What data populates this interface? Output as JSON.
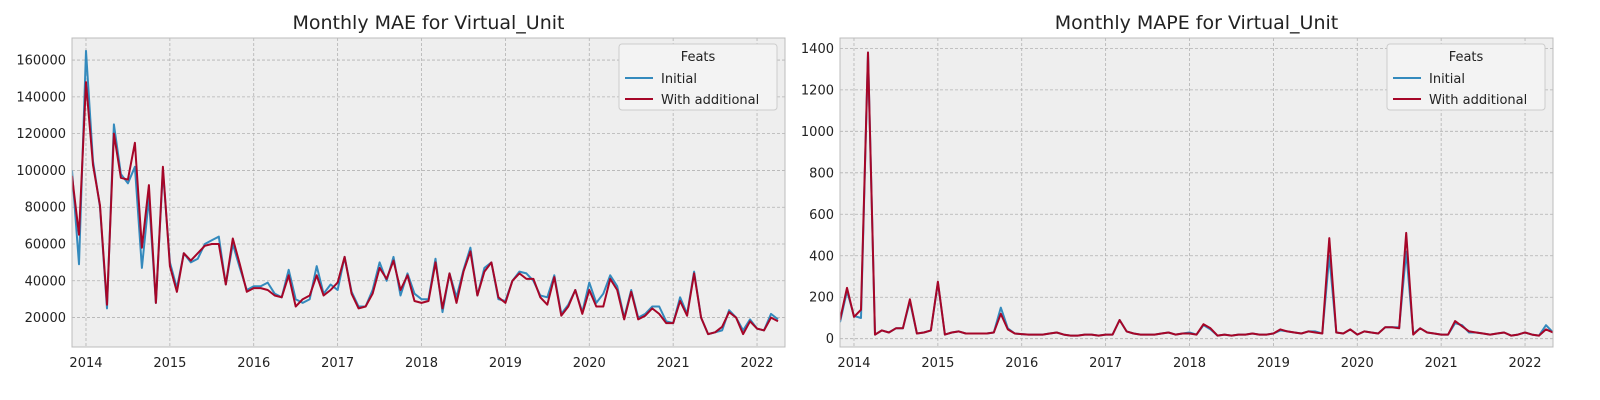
{
  "colors": {
    "background": "#ffffff",
    "plot_bg": "#eeeeee",
    "grid": "#b2b2b2",
    "initial": "#348abd",
    "with_additional": "#a60628"
  },
  "chart_data": [
    {
      "type": "line",
      "title": "Monthly MAE for Virtual_Unit",
      "xlabel": "",
      "ylabel": "",
      "x_start": "2013-11",
      "xlim": [
        "2013-11",
        "2022-05"
      ],
      "ylim": [
        4000,
        172000
      ],
      "x_ticks": [
        "2014",
        "2015",
        "2016",
        "2017",
        "2018",
        "2019",
        "2020",
        "2021",
        "2022"
      ],
      "y_ticks": [
        20000,
        40000,
        60000,
        80000,
        100000,
        120000,
        140000,
        160000
      ],
      "y_tick_labels": [
        "20000",
        "40000",
        "60000",
        "80000",
        "100000",
        "120000",
        "140000",
        "160000"
      ],
      "grid": true,
      "legend": {
        "title": "Feats",
        "placement": "top-right"
      },
      "series": [
        {
          "name": "Initial",
          "color": "#348abd",
          "values": [
            100000,
            49000,
            165000,
            105000,
            80000,
            25000,
            125000,
            98000,
            93000,
            102000,
            47000,
            85000,
            28000,
            100000,
            50000,
            36000,
            55000,
            50000,
            52000,
            60000,
            62000,
            64000,
            38000,
            60000,
            47000,
            35000,
            37000,
            37000,
            39000,
            33000,
            31000,
            46000,
            30000,
            28000,
            30000,
            48000,
            33000,
            38000,
            35000,
            53000,
            34000,
            26000,
            26000,
            35000,
            50000,
            40000,
            53000,
            32000,
            44000,
            33000,
            30000,
            30000,
            52000,
            23000,
            44000,
            31000,
            46000,
            58000,
            32000,
            47000,
            50000,
            30000,
            29000,
            40000,
            45000,
            44000,
            40000,
            32000,
            31000,
            43000,
            22000,
            27000,
            35000,
            23000,
            39000,
            28000,
            33000,
            43000,
            37000,
            20000,
            35000,
            20000,
            22000,
            26000,
            26000,
            18000,
            17000,
            31000,
            22000,
            45000,
            20000,
            11000,
            12000,
            13000,
            24000,
            20000,
            13000,
            19000,
            14000,
            13000,
            22000,
            19000
          ]
        },
        {
          "name": "With additional",
          "color": "#a60628",
          "values": [
            97000,
            65000,
            148000,
            103000,
            81000,
            27000,
            120000,
            96000,
            95000,
            115000,
            58000,
            92000,
            28000,
            102000,
            48000,
            34000,
            55000,
            51000,
            55000,
            59000,
            60000,
            60000,
            38000,
            63000,
            49000,
            34000,
            36000,
            36000,
            35000,
            32000,
            31000,
            43000,
            26000,
            30000,
            32000,
            43000,
            32000,
            35000,
            39000,
            53000,
            33000,
            25000,
            26000,
            33000,
            47000,
            41000,
            51000,
            35000,
            43000,
            29000,
            28000,
            29000,
            50000,
            25000,
            44000,
            28000,
            45000,
            56000,
            32000,
            45000,
            50000,
            31000,
            28000,
            40000,
            44000,
            41000,
            41000,
            31000,
            27000,
            42000,
            21000,
            26000,
            35000,
            22000,
            35000,
            26000,
            26000,
            41000,
            35000,
            19000,
            34000,
            19000,
            21000,
            25000,
            22000,
            17000,
            17000,
            29000,
            21000,
            44000,
            20000,
            11000,
            12000,
            15000,
            23000,
            20000,
            11000,
            18000,
            14000,
            13000,
            20000,
            18000
          ]
        }
      ]
    },
    {
      "type": "line",
      "title": "Monthly MAPE for Virtual_Unit",
      "xlabel": "",
      "ylabel": "",
      "x_start": "2013-11",
      "xlim": [
        "2013-11",
        "2022-05"
      ],
      "ylim": [
        -40,
        1450
      ],
      "x_ticks": [
        "2014",
        "2015",
        "2016",
        "2017",
        "2018",
        "2019",
        "2020",
        "2021",
        "2022"
      ],
      "y_ticks": [
        0,
        200,
        400,
        600,
        800,
        1000,
        1200,
        1400
      ],
      "y_tick_labels": [
        "0",
        "200",
        "400",
        "600",
        "800",
        "1000",
        "1200",
        "1400"
      ],
      "grid": true,
      "legend": {
        "title": "Feats",
        "placement": "top-right"
      },
      "series": [
        {
          "name": "Initial",
          "color": "#348abd",
          "values": [
            80,
            230,
            110,
            100,
            1380,
            20,
            40,
            30,
            50,
            50,
            180,
            25,
            30,
            40,
            270,
            20,
            30,
            35,
            25,
            25,
            25,
            25,
            30,
            150,
            50,
            25,
            22,
            20,
            20,
            20,
            25,
            30,
            20,
            15,
            15,
            20,
            20,
            15,
            20,
            20,
            90,
            35,
            25,
            20,
            20,
            20,
            25,
            30,
            20,
            25,
            30,
            20,
            65,
            45,
            15,
            20,
            15,
            20,
            20,
            25,
            20,
            20,
            25,
            40,
            35,
            30,
            25,
            35,
            35,
            25,
            400,
            30,
            25,
            45,
            20,
            35,
            30,
            25,
            55,
            55,
            55,
            420,
            25,
            50,
            30,
            25,
            20,
            20,
            75,
            65,
            30,
            30,
            25,
            20,
            25,
            30,
            15,
            20,
            30,
            20,
            15,
            65,
            30
          ]
        },
        {
          "name": "With additional",
          "color": "#a60628",
          "values": [
            90,
            245,
            105,
            140,
            1380,
            20,
            40,
            30,
            50,
            50,
            190,
            25,
            30,
            40,
            275,
            20,
            30,
            35,
            25,
            25,
            25,
            25,
            30,
            120,
            45,
            25,
            22,
            20,
            20,
            20,
            25,
            30,
            20,
            15,
            15,
            20,
            20,
            15,
            20,
            20,
            90,
            35,
            25,
            20,
            20,
            20,
            25,
            30,
            20,
            25,
            25,
            20,
            70,
            50,
            15,
            20,
            15,
            20,
            20,
            25,
            20,
            20,
            25,
            45,
            35,
            30,
            25,
            35,
            30,
            25,
            485,
            30,
            25,
            45,
            20,
            35,
            30,
            25,
            55,
            55,
            50,
            510,
            20,
            50,
            30,
            25,
            20,
            20,
            85,
            60,
            35,
            30,
            25,
            20,
            25,
            30,
            15,
            20,
            30,
            20,
            15,
            45,
            30
          ]
        }
      ]
    }
  ]
}
